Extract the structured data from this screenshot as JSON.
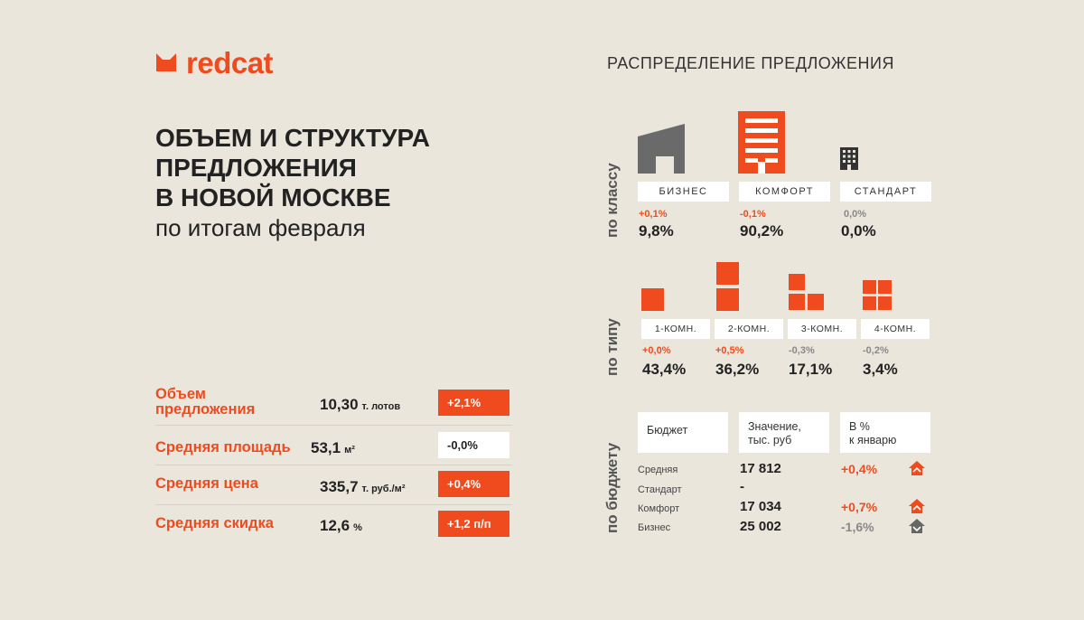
{
  "brand": {
    "name": "redcat",
    "accent": "#f04b1e",
    "background": "#ebe6dc"
  },
  "headline": {
    "line1": "ОБЪЕМ И СТРУКТУРА",
    "line2": "ПРЕДЛОЖЕНИЯ",
    "line3": "В НОВОЙ МОСКВЕ",
    "subtitle": "по итогам февраля"
  },
  "metrics": [
    {
      "label": "Объем предложения",
      "value": "10,30",
      "unit": "т. лотов",
      "change": "+2,1%",
      "change_style": "orange"
    },
    {
      "label": "Средняя площадь",
      "value": "53,1",
      "unit": "м²",
      "change": "-0,0%",
      "change_style": "white"
    },
    {
      "label": "Средняя цена",
      "value": "335,7",
      "unit": "т. руб./м²",
      "change": "+0,4%",
      "change_style": "orange"
    },
    {
      "label": "Средняя скидка",
      "value": "12,6",
      "unit": "%",
      "change": "+1,2 п/п",
      "change_style": "orange"
    }
  ],
  "distribution": {
    "title": "РАСПРЕДЕЛЕНИЕ ПРЕДЛОЖЕНИЯ",
    "by_class": {
      "label": "по классу",
      "items": [
        {
          "name": "БИЗНЕС",
          "icon": "business-building-icon",
          "delta": "+0,1%",
          "direction": "up",
          "share": "9,8%"
        },
        {
          "name": "КОМФОРТ",
          "icon": "comfort-building-icon",
          "delta": "-0,1%",
          "direction": "up",
          "share": "90,2%"
        },
        {
          "name": "СТАНДАРТ",
          "icon": "standard-building-icon",
          "delta": "0,0%",
          "direction": "zero",
          "share": "0,0%"
        }
      ]
    },
    "by_type": {
      "label": "по типу",
      "items": [
        {
          "name": "1-КОМН.",
          "icon": "one-room-icon",
          "delta": "+0,0%",
          "direction": "up",
          "share": "43,4%"
        },
        {
          "name": "2-КОМН.",
          "icon": "two-room-icon",
          "delta": "+0,5%",
          "direction": "up",
          "share": "36,2%"
        },
        {
          "name": "3-КОМН.",
          "icon": "three-room-icon",
          "delta": "-0,3%",
          "direction": "down",
          "share": "17,1%"
        },
        {
          "name": "4-КОМН.",
          "icon": "four-room-icon",
          "delta": "-0,2%",
          "direction": "down",
          "share": "3,4%"
        }
      ]
    },
    "by_budget": {
      "label": "по бюджету",
      "headers": [
        "Бюджет",
        "Значение,\nтыс. руб",
        "В %\nк январю"
      ],
      "rows": [
        {
          "name": "Средняя",
          "value": "17 812",
          "change": "+0,4%",
          "direction": "up"
        },
        {
          "name": "Стандарт",
          "value": "-",
          "change": "",
          "direction": "none"
        },
        {
          "name": "Комфорт",
          "value": "17 034",
          "change": "+0,7%",
          "direction": "up"
        },
        {
          "name": "Бизнес",
          "value": "25 002",
          "change": "-1,6%",
          "direction": "down"
        }
      ]
    }
  }
}
